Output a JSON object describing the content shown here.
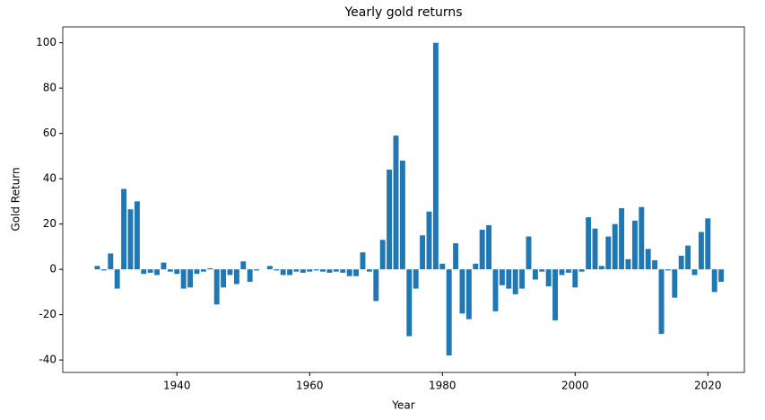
{
  "chart_data": {
    "type": "bar",
    "title": "Yearly gold returns",
    "x_label": "Year",
    "y_label": "Gold Return",
    "color": "#1f77b4",
    "x": [
      1928,
      1929,
      1930,
      1931,
      1932,
      1933,
      1934,
      1935,
      1936,
      1937,
      1938,
      1939,
      1940,
      1941,
      1942,
      1943,
      1944,
      1945,
      1946,
      1947,
      1948,
      1949,
      1950,
      1951,
      1952,
      1953,
      1954,
      1955,
      1956,
      1957,
      1958,
      1959,
      1960,
      1961,
      1962,
      1963,
      1964,
      1965,
      1966,
      1967,
      1968,
      1969,
      1970,
      1971,
      1972,
      1973,
      1974,
      1975,
      1976,
      1977,
      1978,
      1979,
      1980,
      1981,
      1982,
      1983,
      1984,
      1985,
      1986,
      1987,
      1988,
      1989,
      1990,
      1991,
      1992,
      1993,
      1994,
      1995,
      1996,
      1997,
      1998,
      1999,
      2000,
      2001,
      2002,
      2003,
      2004,
      2005,
      2006,
      2007,
      2008,
      2009,
      2010,
      2011,
      2012,
      2013,
      2014,
      2015,
      2016,
      2017,
      2018,
      2019,
      2020,
      2021,
      2022
    ],
    "values": [
      1.5,
      -0.5,
      7,
      -8.5,
      35.5,
      26.5,
      30,
      -2,
      -1.5,
      -2.5,
      3,
      -1,
      -2,
      -8.5,
      -8,
      -2,
      -1,
      0.5,
      -15.5,
      -8,
      -2.5,
      -6.5,
      3.5,
      -5.5,
      -0.5,
      0,
      1.5,
      -0.5,
      -2.5,
      -2.5,
      -1,
      -1.5,
      -1,
      -0.5,
      -1,
      -1.5,
      -1,
      -1.5,
      -3,
      -3,
      7.5,
      -1,
      -14,
      13,
      44,
      59,
      48,
      -29.5,
      -8.5,
      15,
      25.5,
      100,
      2.5,
      -38,
      11.5,
      -19.5,
      -22,
      2.5,
      17.5,
      19.5,
      -18.5,
      -7,
      -8.5,
      -11,
      -8.5,
      14.5,
      -4.5,
      -1,
      -7.5,
      -22.5,
      -2.5,
      -1.5,
      -8,
      -1,
      23,
      18,
      1.5,
      14.5,
      20,
      27,
      4.5,
      21.5,
      27.5,
      9,
      4,
      -28.5,
      -0.5,
      -12.5,
      6,
      10.5,
      -2.5,
      16.5,
      22.5,
      -10,
      -5.5
    ],
    "xlim": [
      1922.8,
      2025.5
    ],
    "xticks": [
      1940,
      1960,
      1980,
      2000,
      2020
    ],
    "ylim": [
      -45.5,
      107
    ],
    "yticks": [
      -40,
      -20,
      0,
      20,
      40,
      60,
      80,
      100
    ],
    "grid": false
  }
}
